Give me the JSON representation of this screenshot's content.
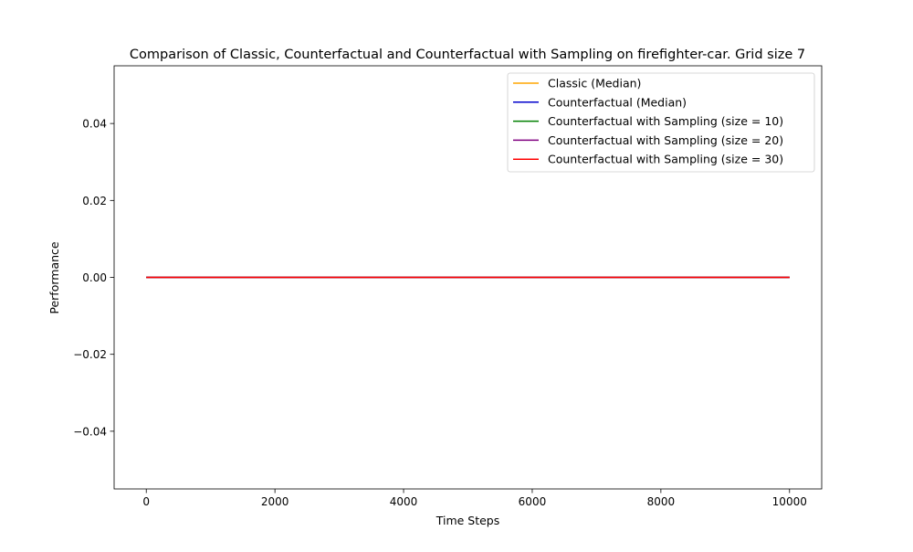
{
  "chart_data": {
    "type": "line",
    "title": "Comparison of Classic, Counterfactual and Counterfactual with Sampling on firefighter-car. Grid size 7",
    "xlabel": "Time Steps",
    "ylabel": "Performance",
    "xlim": [
      -500,
      10500
    ],
    "ylim": [
      -0.055,
      0.055
    ],
    "xticks": [
      0,
      2000,
      4000,
      6000,
      8000,
      10000
    ],
    "xtick_labels": [
      "0",
      "2000",
      "4000",
      "6000",
      "8000",
      "10000"
    ],
    "yticks": [
      -0.04,
      -0.02,
      0.0,
      0.02,
      0.04
    ],
    "ytick_labels": [
      "−0.04",
      "−0.02",
      "0.00",
      "0.02",
      "0.04"
    ],
    "grid": false,
    "legend_position": "top-right",
    "series": [
      {
        "name": "Classic (Median)",
        "color": "#ffa500",
        "x": [
          0,
          10000
        ],
        "y": [
          0,
          0
        ]
      },
      {
        "name": "Counterfactual (Median)",
        "color": "#0000cc",
        "x": [
          0,
          10000
        ],
        "y": [
          0,
          0
        ]
      },
      {
        "name": "Counterfactual with Sampling (size = 10)",
        "color": "#008000",
        "x": [
          0,
          10000
        ],
        "y": [
          0,
          0
        ]
      },
      {
        "name": "Counterfactual with Sampling (size = 20)",
        "color": "#800080",
        "x": [
          0,
          10000
        ],
        "y": [
          0,
          0
        ]
      },
      {
        "name": "Counterfactual with Sampling (size = 30)",
        "color": "#ff0000",
        "x": [
          0,
          10000
        ],
        "y": [
          0,
          0
        ]
      }
    ]
  }
}
